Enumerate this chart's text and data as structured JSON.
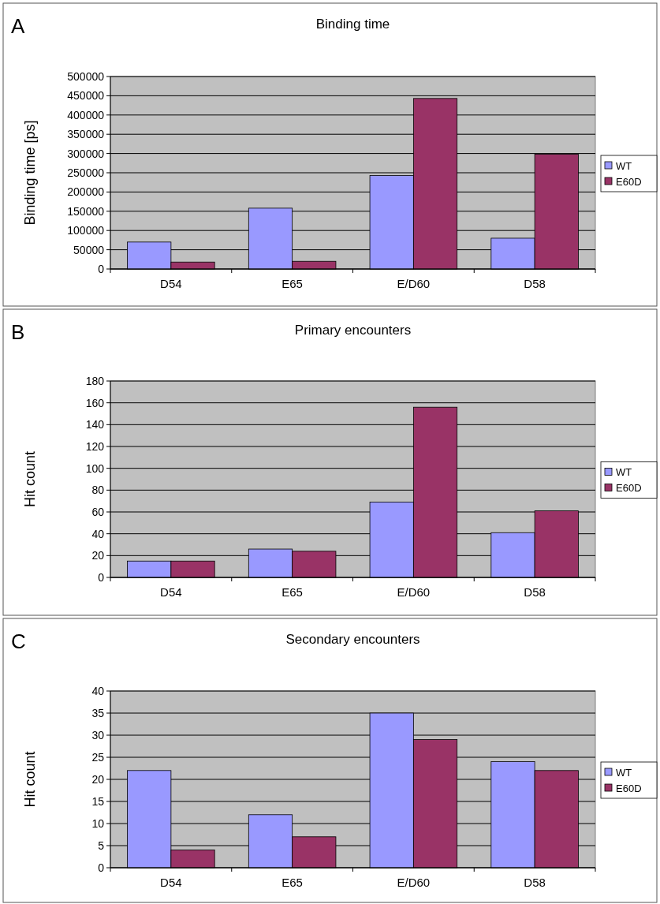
{
  "chart_data": [
    {
      "type": "bar",
      "title": "Binding time",
      "ylabel": "Binding time [ps]",
      "annotations": [
        "A"
      ],
      "categories": [
        "D54",
        "E65",
        "E/D60",
        "D58"
      ],
      "series": [
        {
          "name": "WT",
          "color": "#9999ff",
          "values": [
            70000,
            158000,
            243000,
            80000
          ]
        },
        {
          "name": "E60D",
          "color": "#993366",
          "values": [
            18000,
            20000,
            443000,
            298000
          ]
        }
      ],
      "ylim": [
        0,
        500000
      ],
      "yticks": [
        0,
        50000,
        100000,
        150000,
        200000,
        250000,
        300000,
        350000,
        400000,
        450000,
        500000
      ],
      "grid": "y",
      "legend": "right"
    },
    {
      "type": "bar",
      "title": "Primary encounters",
      "ylabel": "Hit count",
      "annotations": [
        "B"
      ],
      "categories": [
        "D54",
        "E65",
        "E/D60",
        "D58"
      ],
      "series": [
        {
          "name": "WT",
          "color": "#9999ff",
          "values": [
            15,
            26,
            69,
            41
          ]
        },
        {
          "name": "E60D",
          "color": "#993366",
          "values": [
            15,
            24,
            156,
            61
          ]
        }
      ],
      "ylim": [
        0,
        180
      ],
      "yticks": [
        0,
        20,
        40,
        60,
        80,
        100,
        120,
        140,
        160,
        180
      ],
      "grid": "y",
      "legend": "right"
    },
    {
      "type": "bar",
      "title": "Secondary encounters",
      "ylabel": "Hit count",
      "annotations": [
        "C"
      ],
      "categories": [
        "D54",
        "E65",
        "E/D60",
        "D58"
      ],
      "series": [
        {
          "name": "WT",
          "color": "#9999ff",
          "values": [
            22,
            12,
            35,
            24
          ]
        },
        {
          "name": "E60D",
          "color": "#993366",
          "values": [
            4,
            7,
            29,
            22
          ]
        }
      ],
      "ylim": [
        0,
        40
      ],
      "yticks": [
        0,
        5,
        10,
        15,
        20,
        25,
        30,
        35,
        40
      ],
      "grid": "y",
      "legend": "right"
    }
  ]
}
